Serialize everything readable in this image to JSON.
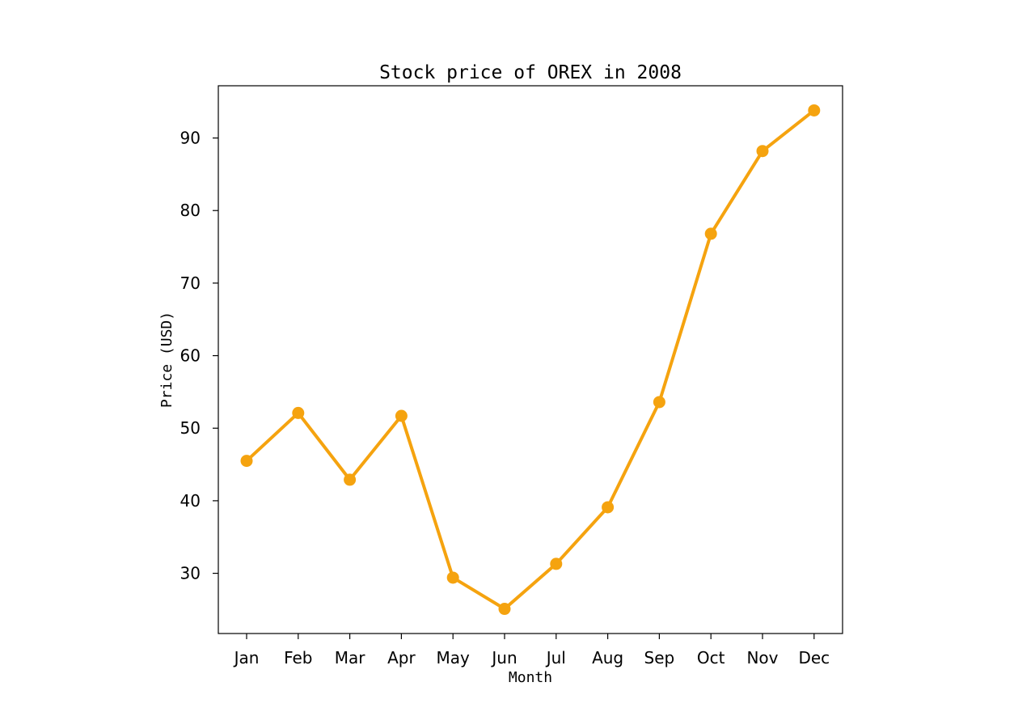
{
  "chart_data": {
    "type": "line",
    "title": "Stock price of OREX in 2008",
    "xlabel": "Month",
    "ylabel": "Price (USD)",
    "categories": [
      "Jan",
      "Feb",
      "Mar",
      "Apr",
      "May",
      "Jun",
      "Jul",
      "Aug",
      "Sep",
      "Oct",
      "Nov",
      "Dec"
    ],
    "series": [
      {
        "values": [
          45.5,
          52.1,
          42.9,
          51.7,
          29.4,
          25.1,
          31.3,
          39.1,
          53.6,
          76.8,
          88.2,
          93.8
        ],
        "color": "#f5a30f",
        "marker": "circle"
      }
    ],
    "ylim": [
      21.7,
      97.2
    ],
    "yticks": [
      30,
      40,
      50,
      60,
      70,
      80,
      90
    ],
    "grid": false,
    "legend": "none"
  }
}
